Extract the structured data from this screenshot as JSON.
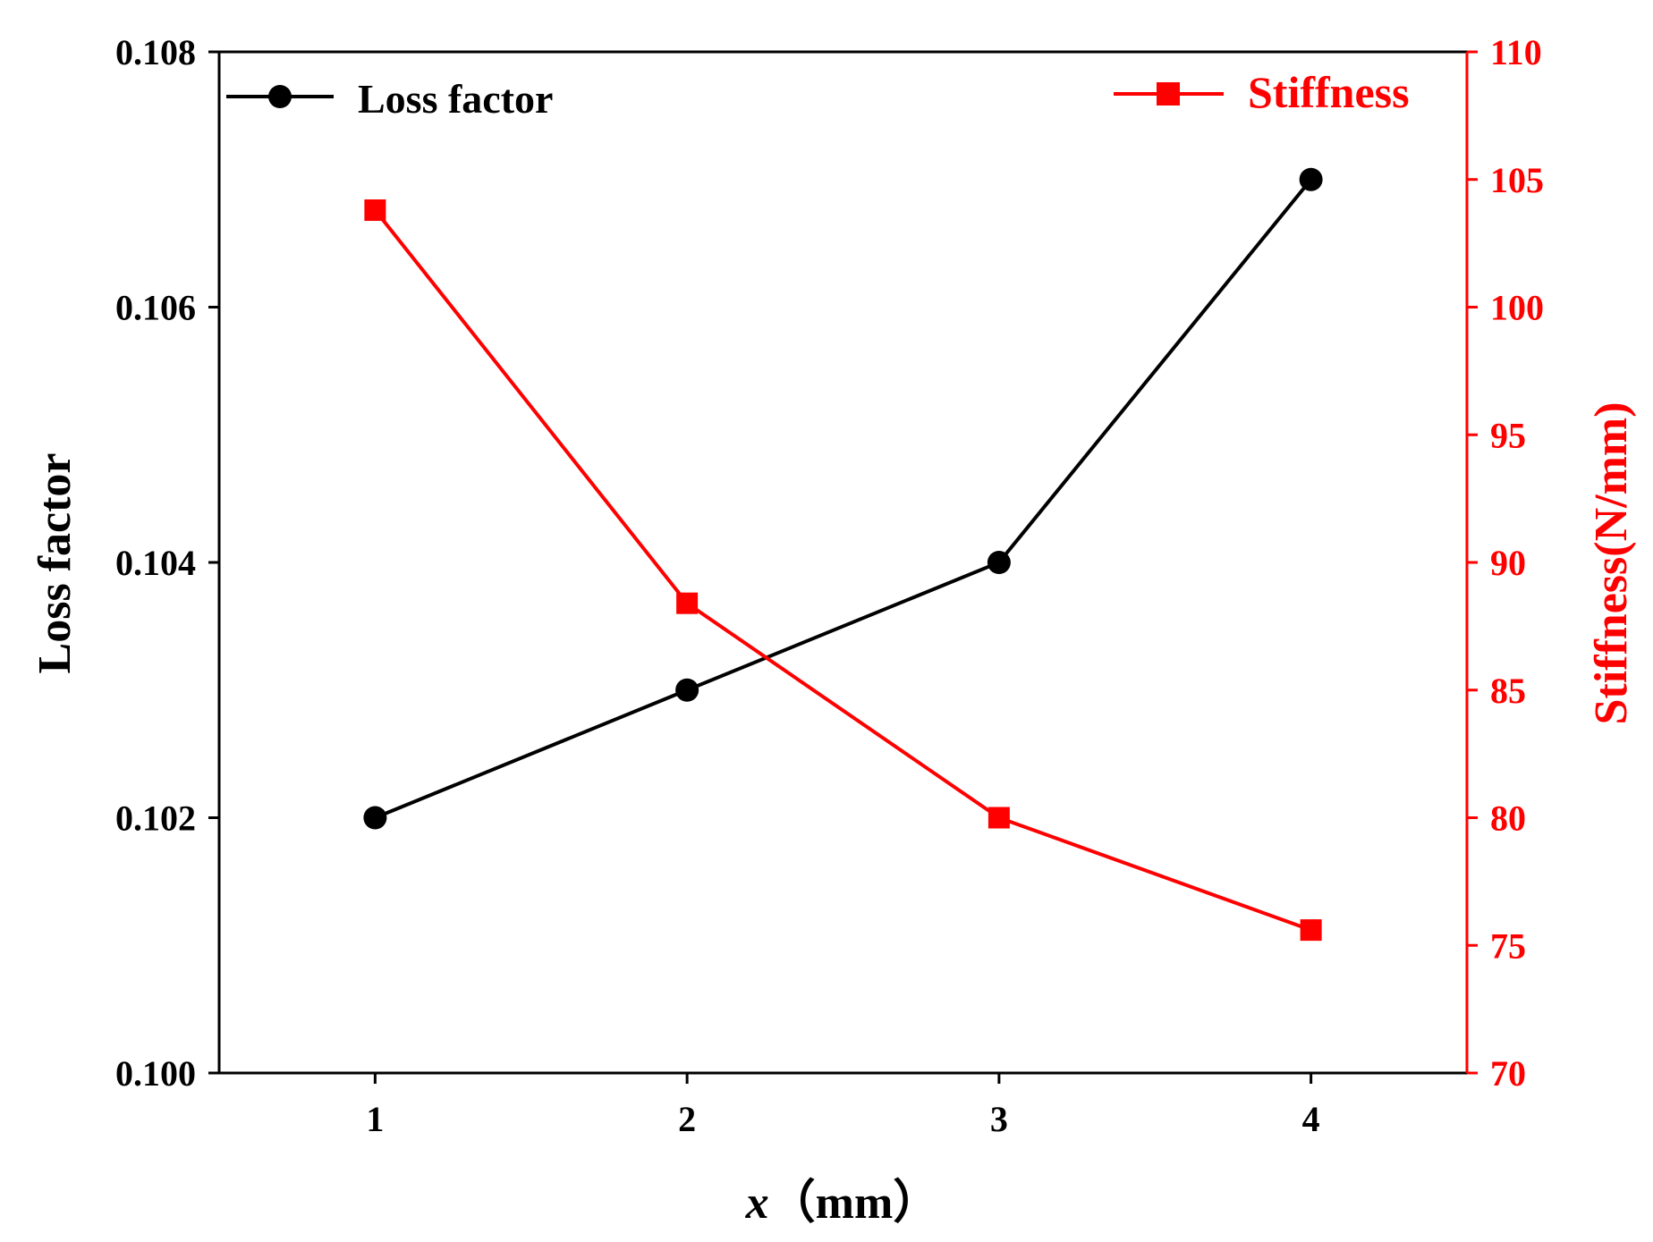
{
  "chart_data": {
    "type": "line",
    "title": "",
    "xlabel": {
      "var": "x",
      "unit": "（mm）"
    },
    "ylabel_left": "Loss factor",
    "ylabel_right": "Stiffness(N/mm)",
    "x": [
      1,
      2,
      3,
      4
    ],
    "x_ticks": [
      "1",
      "2",
      "3",
      "4"
    ],
    "xlim": [
      0.5,
      4.5
    ],
    "ylim_left": [
      0.1,
      0.108
    ],
    "yticks_left": [
      "0.100",
      "0.102",
      "0.104",
      "0.106",
      "0.108"
    ],
    "ylim_right": [
      70,
      110
    ],
    "yticks_right": [
      "70",
      "75",
      "80",
      "85",
      "90",
      "95",
      "100",
      "105",
      "110"
    ],
    "grid": false,
    "series": [
      {
        "name": "Loss factor",
        "axis": "left",
        "marker": "circle",
        "color": "#000000",
        "values": [
          0.102,
          0.103,
          0.104,
          0.107
        ]
      },
      {
        "name": "Stiffness",
        "axis": "right",
        "marker": "square",
        "color": "#ff0000",
        "values": [
          103.8,
          88.4,
          80.0,
          75.6
        ]
      }
    ],
    "legend": [
      {
        "label": "Loss factor",
        "placement": "top-left"
      },
      {
        "label": "Stiffness",
        "placement": "top-right"
      }
    ]
  }
}
